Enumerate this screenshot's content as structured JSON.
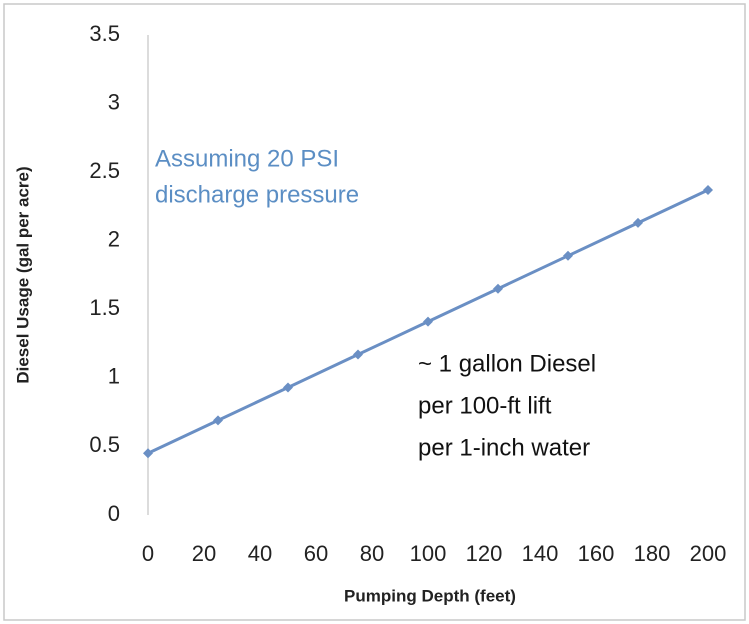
{
  "chart_data": {
    "type": "line",
    "x_label": "Pumping Depth (feet)",
    "y_label": "Diesel Usage (gal per acre)",
    "annotations": [
      {
        "lines": [
          "Assuming 20 PSI",
          "discharge pressure"
        ],
        "color": "#5b8ec4"
      },
      {
        "lines": [
          "~ 1 gallon Diesel",
          "per 100-ft lift",
          "per 1-inch water"
        ],
        "color": "#111111"
      }
    ],
    "x": [
      0,
      25,
      50,
      75,
      100,
      125,
      150,
      175,
      200
    ],
    "series": [
      {
        "name": "Diesel Usage",
        "color": "#6a8fc4",
        "values": [
          0.45,
          0.69,
          0.93,
          1.17,
          1.41,
          1.65,
          1.89,
          2.13,
          2.37
        ]
      }
    ],
    "xlim": [
      0,
      200
    ],
    "xticks": [
      0,
      20,
      40,
      60,
      80,
      100,
      120,
      140,
      160,
      180,
      200
    ],
    "ylim": [
      0,
      3.5
    ],
    "yticks": [
      0,
      0.5,
      1,
      1.5,
      2,
      2.5,
      3,
      3.5
    ],
    "grid": false
  }
}
